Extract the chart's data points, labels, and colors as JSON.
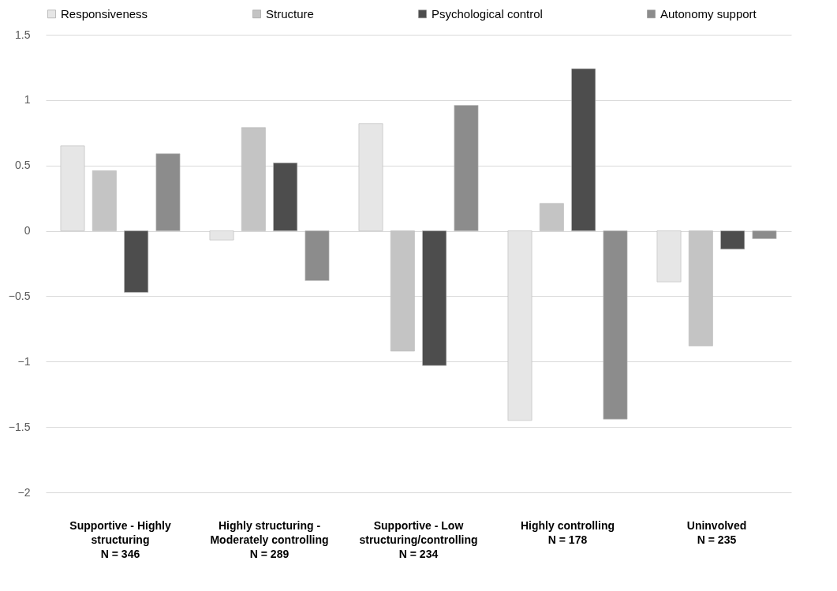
{
  "chart_data": {
    "type": "bar",
    "categories": [
      "Supportive - Highly\nstructuring\nN = 346",
      "Highly structuring -\nModerately controlling\nN = 289",
      "Supportive - Low\nstructuring/controlling\nN = 234",
      "Highly controlling\nN = 178",
      "Uninvolved\nN = 235"
    ],
    "series": [
      {
        "name": "Responsiveness",
        "color": "#e6e6e6",
        "values": [
          0.65,
          -0.07,
          0.82,
          -1.45,
          -0.39
        ]
      },
      {
        "name": "Structure",
        "color": "#c4c4c4",
        "values": [
          0.46,
          0.79,
          -0.92,
          0.21,
          -0.88
        ]
      },
      {
        "name": "Psychological control",
        "color": "#4d4d4d",
        "values": [
          -0.47,
          0.52,
          -1.03,
          1.24,
          -0.14
        ]
      },
      {
        "name": "Autonomy support",
        "color": "#8c8c8c",
        "values": [
          0.59,
          -0.38,
          0.96,
          -1.44,
          -0.06
        ]
      }
    ],
    "ylim": [
      -2,
      1.5
    ],
    "yticks": [
      -2,
      -1.5,
      -1,
      -0.5,
      0,
      0.5,
      1,
      1.5
    ],
    "grid": "y",
    "legend": "top"
  }
}
